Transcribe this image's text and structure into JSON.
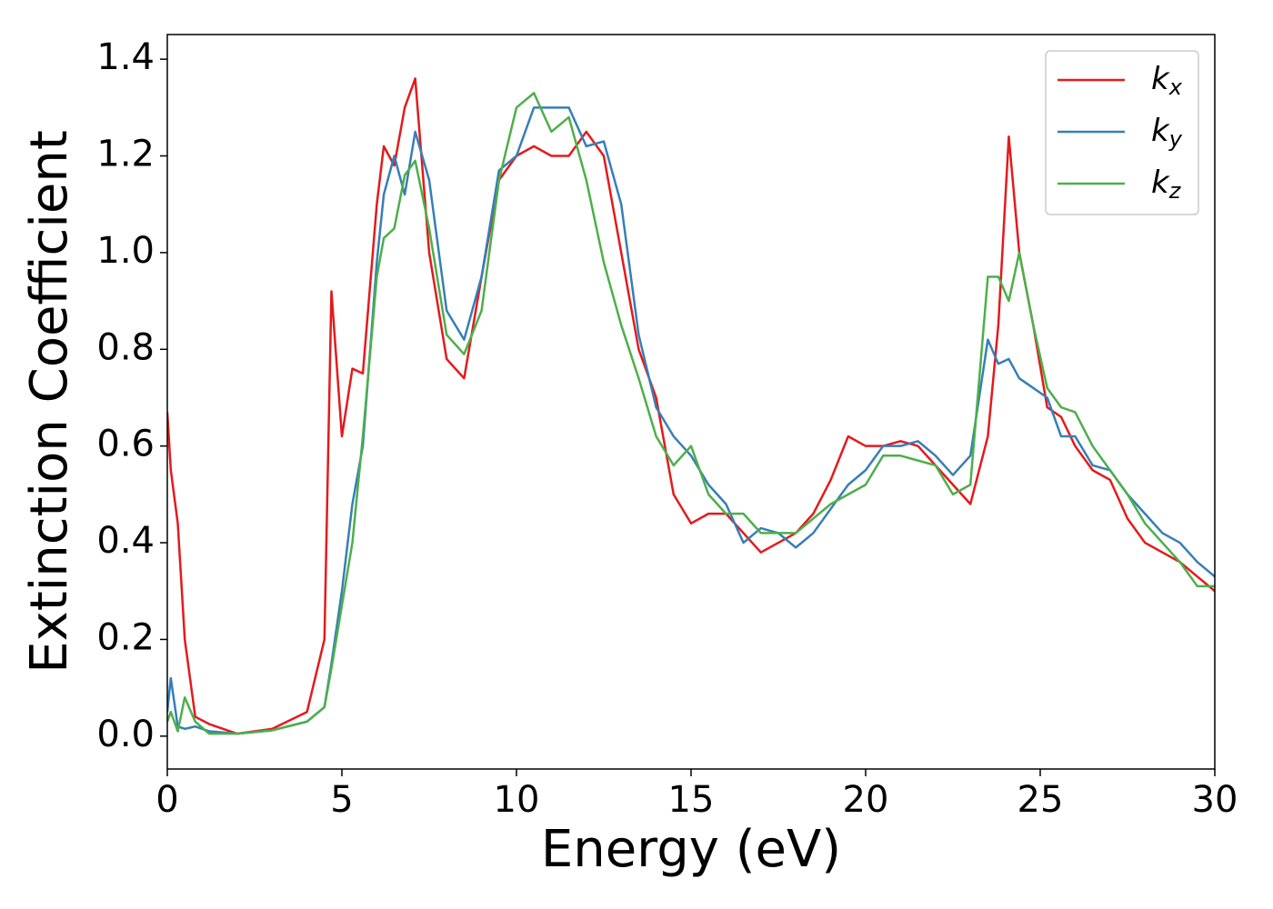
{
  "chart_data": {
    "type": "line",
    "xlabel": "Energy (eV)",
    "ylabel": "Extinction Coefficient",
    "x": [
      0,
      0.1,
      0.3,
      0.5,
      0.8,
      1.2,
      2,
      3,
      4,
      4.5,
      4.7,
      5,
      5.3,
      5.6,
      6,
      6.2,
      6.5,
      6.8,
      7.1,
      7.5,
      8,
      8.5,
      9,
      9.5,
      10,
      10.5,
      11,
      11.5,
      12,
      12.5,
      13,
      13.5,
      14,
      14.5,
      15,
      15.5,
      16,
      16.5,
      17,
      17.5,
      18,
      18.5,
      19,
      19.5,
      20,
      20.5,
      21,
      21.5,
      22,
      22.5,
      23,
      23.5,
      23.8,
      24.1,
      24.4,
      24.8,
      25.2,
      25.6,
      26,
      26.5,
      27,
      27.5,
      28,
      28.5,
      29,
      29.5,
      30
    ],
    "series": [
      {
        "name": "kx",
        "color": "#e41a1c",
        "values": [
          0.67,
          0.55,
          0.44,
          0.2,
          0.04,
          0.025,
          0.005,
          0.015,
          0.05,
          0.2,
          0.92,
          0.62,
          0.76,
          0.75,
          1.1,
          1.22,
          1.18,
          1.3,
          1.36,
          1.0,
          0.78,
          0.74,
          0.95,
          1.15,
          1.2,
          1.22,
          1.2,
          1.2,
          1.25,
          1.2,
          1.0,
          0.8,
          0.7,
          0.5,
          0.44,
          0.46,
          0.46,
          0.42,
          0.38,
          0.4,
          0.42,
          0.46,
          0.53,
          0.62,
          0.6,
          0.6,
          0.61,
          0.6,
          0.56,
          0.52,
          0.48,
          0.62,
          0.85,
          1.24,
          1.0,
          0.85,
          0.68,
          0.66,
          0.6,
          0.55,
          0.53,
          0.45,
          0.4,
          0.38,
          0.36,
          0.33,
          0.3
        ]
      },
      {
        "name": "ky",
        "color": "#377eb8",
        "values": [
          0.05,
          0.12,
          0.02,
          0.015,
          0.02,
          0.01,
          0.005,
          0.012,
          0.03,
          0.06,
          0.15,
          0.3,
          0.48,
          0.6,
          0.98,
          1.12,
          1.2,
          1.12,
          1.25,
          1.15,
          0.88,
          0.82,
          0.95,
          1.17,
          1.2,
          1.3,
          1.3,
          1.3,
          1.22,
          1.23,
          1.1,
          0.83,
          0.68,
          0.62,
          0.58,
          0.52,
          0.48,
          0.4,
          0.43,
          0.42,
          0.39,
          0.42,
          0.47,
          0.52,
          0.55,
          0.6,
          0.6,
          0.61,
          0.58,
          0.54,
          0.58,
          0.82,
          0.77,
          0.78,
          0.74,
          0.72,
          0.7,
          0.62,
          0.62,
          0.56,
          0.55,
          0.5,
          0.46,
          0.42,
          0.4,
          0.36,
          0.33
        ]
      },
      {
        "name": "kz",
        "color": "#4daf4a",
        "values": [
          0.03,
          0.05,
          0.01,
          0.08,
          0.03,
          0.005,
          0.005,
          0.012,
          0.03,
          0.06,
          0.14,
          0.27,
          0.4,
          0.62,
          0.95,
          1.03,
          1.05,
          1.16,
          1.19,
          1.05,
          0.83,
          0.79,
          0.88,
          1.15,
          1.3,
          1.33,
          1.25,
          1.28,
          1.15,
          0.98,
          0.85,
          0.74,
          0.62,
          0.56,
          0.6,
          0.5,
          0.46,
          0.46,
          0.42,
          0.42,
          0.42,
          0.45,
          0.48,
          0.5,
          0.52,
          0.58,
          0.58,
          0.57,
          0.56,
          0.5,
          0.52,
          0.95,
          0.95,
          0.9,
          1.0,
          0.85,
          0.72,
          0.68,
          0.67,
          0.6,
          0.55,
          0.5,
          0.44,
          0.4,
          0.36,
          0.31,
          0.31
        ]
      }
    ],
    "xlim": [
      0,
      30
    ],
    "xticks": [
      0,
      5,
      10,
      15,
      20,
      25,
      30
    ],
    "ylim": [
      -0.068,
      1.451
    ],
    "yticks": [
      {
        "value": 0,
        "label": "0.0"
      },
      0.2,
      0.4,
      0.6,
      0.8,
      {
        "value": 1,
        "label": "1.0"
      },
      1.2,
      1.4
    ],
    "legend": "upper right"
  }
}
